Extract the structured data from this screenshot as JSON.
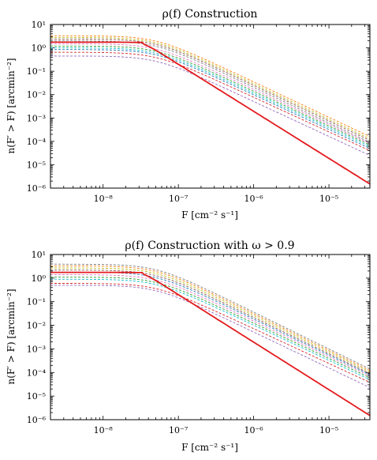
{
  "chart_data": [
    {
      "type": "line",
      "title": "ρ(f) Construction",
      "xlabel": "F [cm⁻² s⁻¹]",
      "ylabel": "n(F′ > F) [arcmin⁻²]",
      "xscale": "log",
      "yscale": "log",
      "xlim": [
        2e-09,
        3.5e-05
      ],
      "ylim": [
        1e-06,
        10
      ],
      "x_ticks": [
        1e-08,
        1e-07,
        1e-06,
        1e-05
      ],
      "x_tick_labels": [
        "10⁻⁸",
        "10⁻⁷",
        "10⁻⁶",
        "10⁻⁵"
      ],
      "y_ticks": [
        1e-06,
        1e-05,
        0.0001,
        0.001,
        0.01,
        0.1,
        1,
        10
      ],
      "y_tick_labels": [
        "10⁻⁶",
        "10⁻⁵",
        "10⁻⁴",
        "10⁻³",
        "10⁻²",
        "10⁻¹",
        "10⁰",
        "10¹"
      ],
      "highlight": {
        "color": "#e41a1c",
        "style": "solid",
        "plateau": 1.75,
        "break_x": 3.4e-08,
        "end_y": 1.5e-06
      },
      "dashed_series": [
        {
          "color": "#ff7f0e",
          "plateau": 3.3,
          "end_y": 0.00016
        },
        {
          "color": "#bcbd22",
          "plateau": 2.8,
          "end_y": 0.00013
        },
        {
          "color": "#8c564b",
          "plateau": 2.4,
          "end_y": 0.00011
        },
        {
          "color": "#7f7f7f",
          "plateau": 2.0,
          "end_y": 9e-05
        },
        {
          "color": "#e377c2",
          "plateau": 1.5,
          "end_y": 8e-05
        },
        {
          "color": "#2ca02c",
          "plateau": 1.2,
          "end_y": 7e-05
        },
        {
          "color": "#17becf",
          "plateau": 1.0,
          "end_y": 6e-05
        },
        {
          "color": "#1f77b4",
          "plateau": 0.85,
          "end_y": 5e-05
        },
        {
          "color": "#d62728",
          "plateau": 0.65,
          "end_y": 4e-05
        },
        {
          "color": "#9467bd",
          "plateau": 0.45,
          "end_y": 2.5e-05
        }
      ]
    },
    {
      "type": "line",
      "title": "ρ(f) Construction with ω > 0.9",
      "xlabel": "F [cm⁻² s⁻¹]",
      "ylabel": "n(F′ > F) [arcmin⁻²]",
      "xscale": "log",
      "yscale": "log",
      "xlim": [
        2e-09,
        3.5e-05
      ],
      "ylim": [
        1e-06,
        10
      ],
      "x_ticks": [
        1e-08,
        1e-07,
        1e-06,
        1e-05
      ],
      "x_tick_labels": [
        "10⁻⁸",
        "10⁻⁷",
        "10⁻⁶",
        "10⁻⁵"
      ],
      "y_ticks": [
        1e-06,
        1e-05,
        0.0001,
        0.001,
        0.01,
        0.1,
        1,
        10
      ],
      "y_tick_labels": [
        "10⁻⁶",
        "10⁻⁵",
        "10⁻⁴",
        "10⁻³",
        "10⁻²",
        "10⁻¹",
        "10⁰",
        "10¹"
      ],
      "highlight": {
        "color": "#e41a1c",
        "style": "solid",
        "plateau": 1.75,
        "break_x": 3.4e-08,
        "end_y": 1.5e-06
      },
      "dashed_series": [
        {
          "color": "#7f7f7f",
          "plateau": 3.9,
          "end_y": 0.00014
        },
        {
          "color": "#ff7f0e",
          "plateau": 3.3,
          "end_y": 0.00012
        },
        {
          "color": "#bcbd22",
          "plateau": 2.7,
          "end_y": 0.000105
        },
        {
          "color": "#8c564b",
          "plateau": 2.2,
          "end_y": 9e-05
        },
        {
          "color": "#1f77b4",
          "plateau": 1.8,
          "end_y": 8e-05
        },
        {
          "color": "#e377c2",
          "plateau": 1.4,
          "end_y": 7e-05
        },
        {
          "color": "#2ca02c",
          "plateau": 1.1,
          "end_y": 6e-05
        },
        {
          "color": "#17becf",
          "plateau": 0.9,
          "end_y": 5e-05
        },
        {
          "color": "#d62728",
          "plateau": 0.6,
          "end_y": 3.8e-05
        },
        {
          "color": "#9467bd",
          "plateau": 0.5,
          "end_y": 2.3e-05
        }
      ]
    }
  ]
}
